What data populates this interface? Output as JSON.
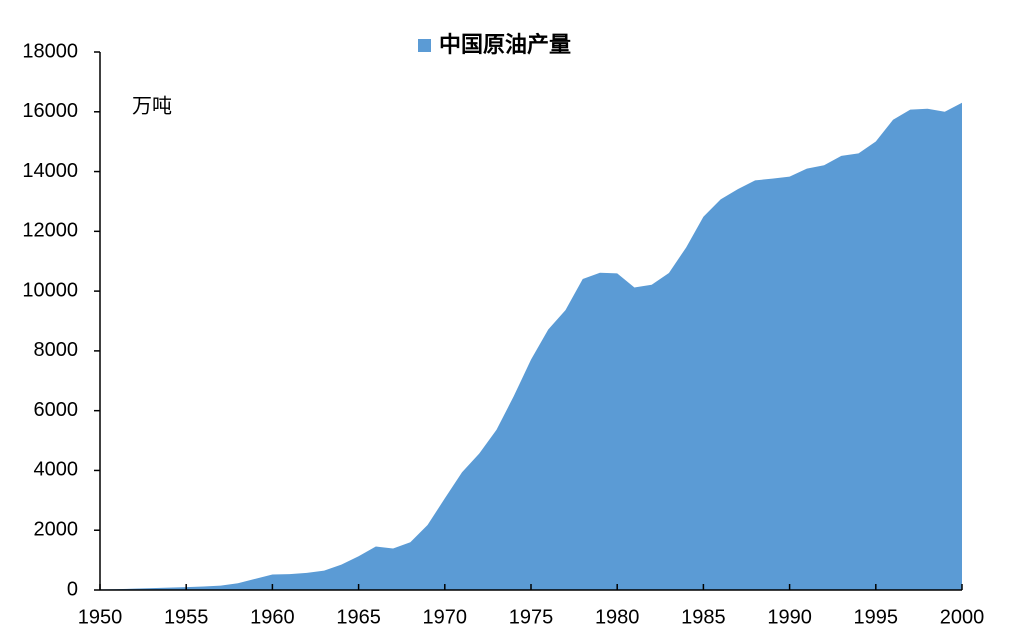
{
  "chart_data": {
    "type": "area",
    "legend_position": "top",
    "annotation": "万吨",
    "x": [
      1950,
      1951,
      1952,
      1953,
      1954,
      1955,
      1956,
      1957,
      1958,
      1959,
      1960,
      1961,
      1962,
      1963,
      1964,
      1965,
      1966,
      1967,
      1968,
      1969,
      1970,
      1971,
      1972,
      1973,
      1974,
      1975,
      1976,
      1977,
      1978,
      1979,
      1980,
      1981,
      1982,
      1983,
      1984,
      1985,
      1986,
      1987,
      1988,
      1989,
      1990,
      1991,
      1992,
      1993,
      1994,
      1995,
      1996,
      1997,
      1998,
      1999,
      2000
    ],
    "series": [
      {
        "name": "中国原油产量",
        "color": "#5b9bd5",
        "values": [
          20,
          30,
          44,
          62,
          79,
          97,
          116,
          146,
          226,
          373,
          520,
          531,
          575,
          648,
          848,
          1131,
          1455,
          1388,
          1599,
          2174,
          3065,
          3941,
          4567,
          5361,
          6485,
          7706,
          8716,
          9364,
          10405,
          10615,
          10595,
          10122,
          10212,
          10607,
          11461,
          12490,
          13069,
          13414,
          13705,
          13764,
          13831,
          14099,
          14210,
          14524,
          14608,
          15005,
          15733,
          16074,
          16100,
          16000,
          16300
        ]
      }
    ],
    "xlim": [
      1950,
      2000
    ],
    "xticks": [
      1950,
      1955,
      1960,
      1965,
      1970,
      1975,
      1980,
      1985,
      1990,
      1995,
      2000
    ],
    "ylim": [
      0,
      18000
    ],
    "yticks": [
      0,
      2000,
      4000,
      6000,
      8000,
      10000,
      12000,
      14000,
      16000,
      18000
    ],
    "grid": false
  }
}
